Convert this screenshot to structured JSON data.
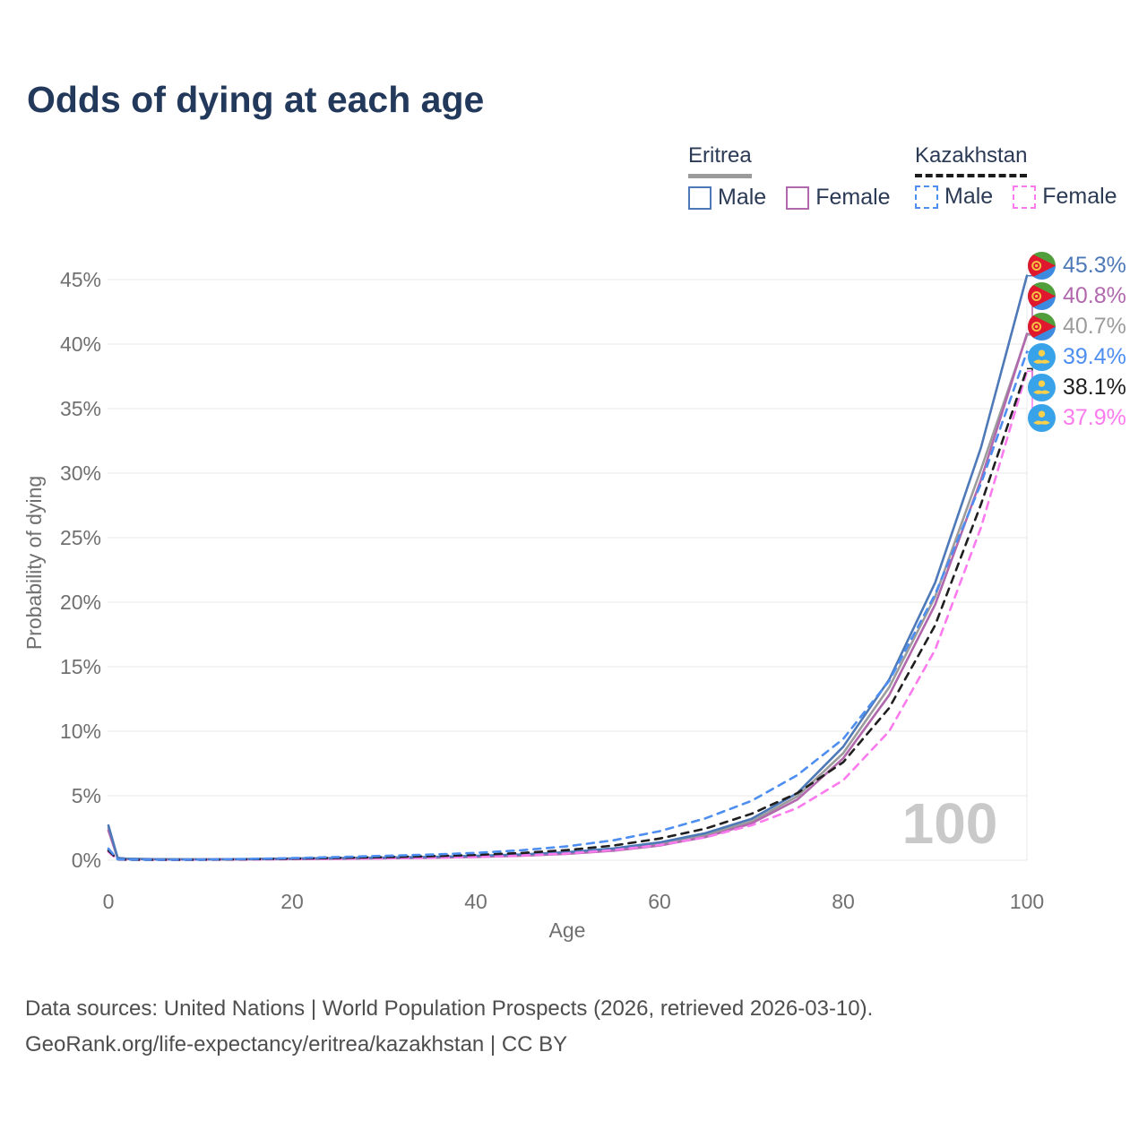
{
  "header": {
    "title": "Odds of dying at each age"
  },
  "legend": {
    "groups": [
      {
        "name": "Eritrea",
        "line_style": "solid",
        "underline_color": "#9b9b9b",
        "items": [
          {
            "label": "Male",
            "color": "#4e79b8"
          },
          {
            "label": "Female",
            "color": "#b168ad"
          }
        ]
      },
      {
        "name": "Kazakhstan",
        "line_style": "dashed",
        "underline_color": "#1c1c1c",
        "items": [
          {
            "label": "Male",
            "color": "#4d8ef0"
          },
          {
            "label": "Female",
            "color": "#fb7bee"
          }
        ]
      }
    ]
  },
  "chart_data": {
    "type": "line",
    "title": "Odds of dying at each age",
    "xlabel": "Age",
    "ylabel": "Probability of dying",
    "xlim": [
      0,
      100
    ],
    "ylim": [
      0,
      46
    ],
    "x_ticks": [
      0,
      20,
      40,
      60,
      80,
      100
    ],
    "y_ticks": [
      0,
      5,
      10,
      15,
      20,
      25,
      30,
      35,
      40,
      45
    ],
    "y_tick_suffix": "%",
    "grid": "horizontal",
    "legend_position": "top-right",
    "watermark": "100",
    "ages": [
      0,
      1,
      2,
      5,
      10,
      15,
      20,
      25,
      30,
      35,
      40,
      45,
      50,
      55,
      60,
      65,
      70,
      75,
      80,
      85,
      90,
      95,
      100
    ],
    "series": [
      {
        "name": "Eritrea Both sexes",
        "country": "Eritrea",
        "flag": "eritrea",
        "color": "#9c9c9c",
        "dashed": false,
        "end_label": "40.7%",
        "values": [
          2.5,
          0.17,
          0.11,
          0.075,
          0.065,
          0.08,
          0.11,
          0.145,
          0.18,
          0.23,
          0.3,
          0.4,
          0.56,
          0.83,
          1.26,
          1.95,
          3.0,
          4.95,
          8.3,
          13.4,
          20.4,
          30.3,
          40.7
        ]
      },
      {
        "name": "Eritrea Female",
        "country": "Eritrea",
        "flag": "eritrea",
        "color": "#b168ad",
        "dashed": false,
        "end_label": "40.8%",
        "values": [
          2.3,
          0.16,
          0.1,
          0.07,
          0.06,
          0.07,
          0.09,
          0.12,
          0.15,
          0.19,
          0.26,
          0.35,
          0.5,
          0.74,
          1.14,
          1.8,
          2.85,
          4.7,
          7.9,
          12.8,
          19.8,
          29.5,
          40.8
        ]
      },
      {
        "name": "Eritrea Male",
        "country": "Eritrea",
        "flag": "eritrea",
        "color": "#4e79b8",
        "dashed": false,
        "end_label": "45.3%",
        "values": [
          2.7,
          0.18,
          0.12,
          0.08,
          0.07,
          0.09,
          0.13,
          0.17,
          0.21,
          0.26,
          0.34,
          0.45,
          0.63,
          0.92,
          1.38,
          2.1,
          3.2,
          5.2,
          8.8,
          14.0,
          21.5,
          32.0,
          45.3
        ]
      },
      {
        "name": "Kazakhstan Female",
        "country": "Kazakhstan",
        "flag": "kazakhstan",
        "color": "#fb7bee",
        "dashed": true,
        "end_label": "37.9%",
        "values": [
          0.65,
          0.05,
          0.04,
          0.03,
          0.035,
          0.05,
          0.08,
          0.11,
          0.145,
          0.19,
          0.26,
          0.37,
          0.53,
          0.79,
          1.18,
          1.78,
          2.7,
          4.05,
          6.2,
          10.0,
          16.3,
          25.8,
          37.9
        ]
      },
      {
        "name": "Kazakhstan Both sexes",
        "country": "Kazakhstan",
        "flag": "kazakhstan",
        "color": "#1f1f1f",
        "dashed": true,
        "end_label": "38.1%",
        "values": [
          0.75,
          0.06,
          0.045,
          0.035,
          0.04,
          0.075,
          0.125,
          0.18,
          0.24,
          0.31,
          0.41,
          0.56,
          0.79,
          1.14,
          1.68,
          2.45,
          3.6,
          5.2,
          7.6,
          11.8,
          18.2,
          27.6,
          38.1
        ]
      },
      {
        "name": "Kazakhstan Male",
        "country": "Kazakhstan",
        "flag": "kazakhstan",
        "color": "#4d8ef0",
        "dashed": true,
        "end_label": "39.4%",
        "values": [
          0.9,
          0.07,
          0.05,
          0.04,
          0.05,
          0.1,
          0.17,
          0.25,
          0.34,
          0.44,
          0.57,
          0.78,
          1.08,
          1.55,
          2.25,
          3.25,
          4.6,
          6.6,
          9.4,
          13.9,
          20.6,
          29.2,
          39.4
        ]
      }
    ]
  },
  "footer": {
    "line1": "Data sources: United Nations | World Population Prospects (2026, retrieved 2026-03-10).",
    "line2": "GeoRank.org/life-expectancy/eritrea/kazakhstan | CC BY"
  }
}
